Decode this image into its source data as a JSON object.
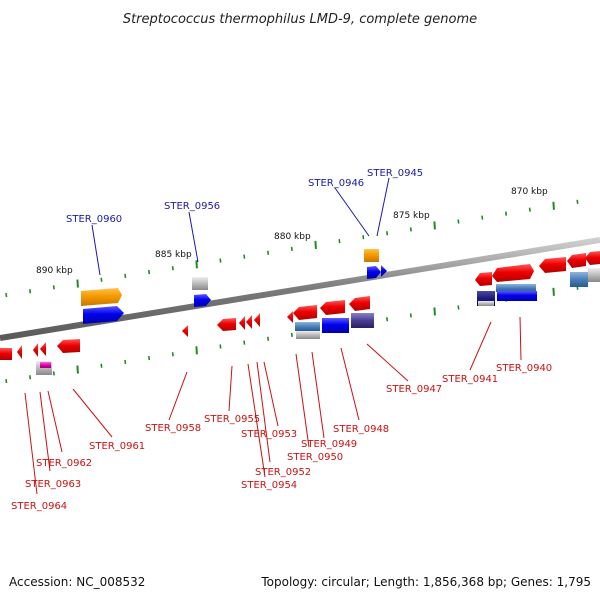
{
  "title": "Streptococcus thermophilus LMD-9, complete genome",
  "footer": {
    "accession": "Accession: NC_008532",
    "summary": "Topology: circular; Length: 1,856,368 bp; Genes: 1,795"
  },
  "colors": {
    "forward_gene": "#ee1111",
    "reverse_gene": "#ee1111",
    "backbone": "#888888",
    "tick": "#228b22",
    "label_top": "#1a1aaa",
    "label_bottom": "#cc1111"
  },
  "kbp_labels": [
    "890 kbp",
    "885 kbp",
    "880 kbp",
    "875 kbp",
    "870 kbp"
  ],
  "top_labels": [
    "STER_0960",
    "STER_0956",
    "STER_0946",
    "STER_0945"
  ],
  "bottom_labels": [
    "STER_0961",
    "STER_0962",
    "STER_0963",
    "STER_0964",
    "STER_0958",
    "STER_0955",
    "STER_0953",
    "STER_0952",
    "STER_0954",
    "STER_0950",
    "STER_0949",
    "STER_0948",
    "STER_0947",
    "STER_0941",
    "STER_0940"
  ]
}
